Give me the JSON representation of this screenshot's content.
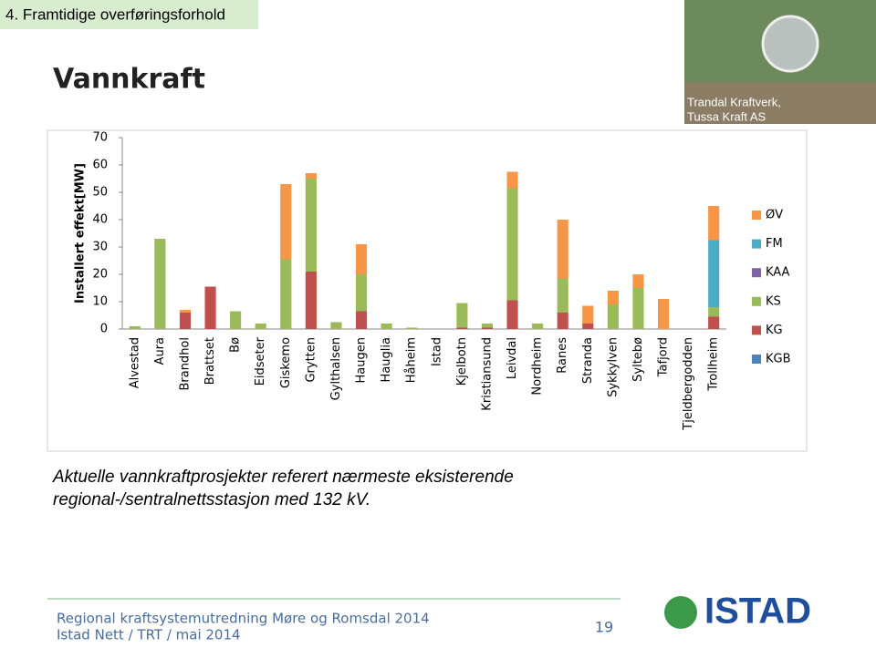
{
  "header": "4. Framtidige overføringsforhold",
  "photo_caption": [
    "Trandal Kraftverk,",
    "Tussa Kraft AS"
  ],
  "note": [
    "Aktuelle vannkraftprosjekter referert nærmeste eksisterende",
    "regional-/sentralnettsstasjon med 132 kV."
  ],
  "footer": {
    "lines": [
      "Regional kraftsystemutredning Møre og Romsdal 2014",
      "Istad Nett /  TRT  / mai 2014"
    ],
    "page_number": "19",
    "logo": "ISTAD"
  },
  "chart_data": {
    "type": "stacked_bar",
    "title": "Vannkraft",
    "y_label": "Installert effekt[MW]",
    "categories": [
      "Alvestad",
      "Aura",
      "Brandhol",
      "Brattset",
      "Bø",
      "Eidseter",
      "Giskemo",
      "Grytten",
      "Gylthalsen",
      "Haugen",
      "Hauglia",
      "Håheim",
      "Istad",
      "Kjelbotn",
      "Kristiansund",
      "Leivdal",
      "Nordheim",
      "Ranes",
      "Stranda",
      "Sykkylven",
      "Syltebø",
      "Tafjord",
      "Tjeldbergodden",
      "Trollheim"
    ],
    "series": [
      {
        "name": "KGB",
        "color": "#4f81bd",
        "values": [
          0,
          0,
          0,
          0,
          0,
          0,
          0,
          0,
          0,
          0,
          0,
          0,
          0,
          0,
          0,
          0,
          0,
          0,
          0,
          0,
          0,
          0,
          0,
          0
        ]
      },
      {
        "name": "KG",
        "color": "#c0504d",
        "values": [
          0,
          0,
          6,
          15.5,
          0,
          0,
          0,
          21,
          0,
          6.5,
          0,
          0,
          0,
          0.5,
          0.5,
          10.5,
          0,
          6,
          2,
          0,
          0,
          0,
          0,
          4.5
        ]
      },
      {
        "name": "KS",
        "color": "#9bbb59",
        "values": [
          1,
          33,
          0,
          0,
          6.5,
          2,
          25.5,
          34,
          2.5,
          13.5,
          2,
          0.5,
          0,
          9,
          1.5,
          41,
          2,
          12.5,
          0,
          9,
          15,
          0,
          0,
          3.5
        ]
      },
      {
        "name": "KAA",
        "color": "#8064a2",
        "values": [
          0,
          0,
          0,
          0,
          0,
          0,
          0,
          0,
          0,
          0,
          0,
          0,
          0,
          0,
          0,
          0,
          0,
          0,
          0,
          0,
          0,
          0,
          0,
          0
        ]
      },
      {
        "name": "FM",
        "color": "#4bacc6",
        "values": [
          0,
          0,
          0,
          0,
          0,
          0,
          0,
          0,
          0,
          0,
          0,
          0,
          0,
          0,
          0,
          0,
          0,
          0,
          0,
          0,
          0,
          0,
          0,
          24.5
        ]
      },
      {
        "name": "ØV",
        "color": "#f79646",
        "values": [
          0,
          0,
          1,
          0,
          0,
          0,
          27.5,
          2,
          0,
          11,
          0,
          0,
          0,
          0,
          0,
          6,
          0,
          21.5,
          6.5,
          5,
          5,
          11,
          0,
          12.5
        ]
      }
    ],
    "ylim": [
      0,
      70
    ],
    "yticks": [
      0,
      10,
      20,
      30,
      40,
      50,
      60,
      70
    ],
    "legend": "right"
  }
}
